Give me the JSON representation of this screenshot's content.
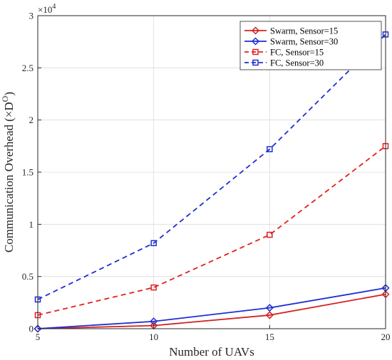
{
  "chart_data": {
    "type": "line",
    "xlabel": "Number of UAVs",
    "ylabel": "Communication Overhead (×D",
    "ylabel_superscript": "O",
    "ylabel_close": ")",
    "y_exponent_base": "×10",
    "y_exponent_power": "4",
    "x": [
      5,
      10,
      15,
      20
    ],
    "xlim": [
      5,
      20
    ],
    "ylim": [
      0,
      30000
    ],
    "x_ticks": [
      "5",
      "10",
      "15",
      "20"
    ],
    "y_ticks": [
      "0",
      "0.5",
      "1",
      "1.5",
      "2",
      "2.5",
      "3"
    ],
    "grid": true,
    "legend_position": "top-right",
    "series": [
      {
        "name": "Swarm, Sensor=15",
        "values": [
          0,
          300,
          1300,
          3300
        ],
        "color": "#d62020",
        "dash": "solid",
        "marker": "diamond"
      },
      {
        "name": "Swarm, Sensor=30",
        "values": [
          0,
          700,
          2000,
          3900
        ],
        "color": "#1f2fd0",
        "dash": "solid",
        "marker": "diamond"
      },
      {
        "name": "FC, Sensor=15",
        "values": [
          1300,
          3950,
          9000,
          17500
        ],
        "color": "#e02020",
        "dash": "dashed",
        "marker": "square"
      },
      {
        "name": "FC, Sensor=30",
        "values": [
          2800,
          8200,
          17200,
          28200
        ],
        "color": "#1f2fd0",
        "dash": "dashed",
        "marker": "square"
      }
    ]
  }
}
